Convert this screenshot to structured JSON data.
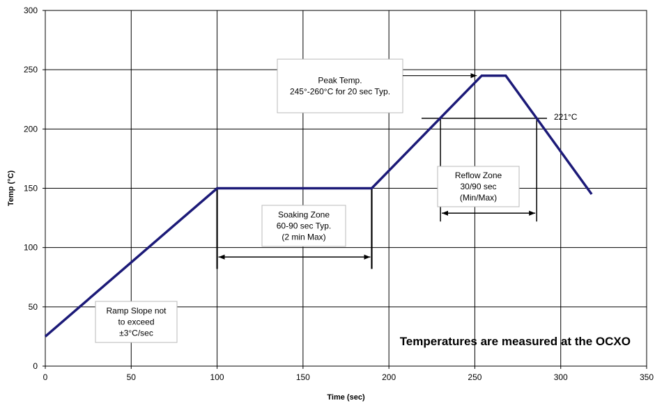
{
  "chart_data": {
    "type": "line",
    "title": "",
    "xlabel": "Time (sec)",
    "ylabel": "Temp (°C)",
    "xlim": [
      0,
      350
    ],
    "ylim": [
      0,
      300
    ],
    "xticks": [
      0,
      50,
      100,
      150,
      200,
      250,
      300,
      350
    ],
    "yticks": [
      0,
      50,
      100,
      150,
      200,
      250,
      300
    ],
    "grid": true,
    "colors": {
      "profile": "#1c1a78",
      "grid": "#000000"
    },
    "series": [
      {
        "x": [
          0,
          100,
          190,
          254,
          268,
          318
        ],
        "y": [
          25,
          150,
          150,
          245,
          245,
          145
        ]
      }
    ],
    "reference_line": {
      "y": 209,
      "x_from": 219,
      "x_to": 292,
      "label": "221°C"
    },
    "annotations": {
      "peak": {
        "lines": [
          "Peak Temp.",
          "245°-260°C for 20 sec Typ."
        ],
        "arrow_to": [
          252,
          245
        ]
      },
      "soaking": {
        "lines": [
          "Soaking Zone",
          "60-90 sec Typ.",
          "(2 min Max)"
        ],
        "span": [
          100,
          190
        ],
        "arrow_y": 92
      },
      "reflow": {
        "lines": [
          "Reflow Zone",
          "30/90 sec",
          "(Min/Max)"
        ],
        "span": [
          230,
          286
        ],
        "arrow_y": 129
      },
      "ramp": {
        "lines": [
          "Ramp Slope not",
          "to exceed",
          "±3°C/sec"
        ]
      }
    },
    "note": "Temperatures are measured at the OCXO"
  }
}
